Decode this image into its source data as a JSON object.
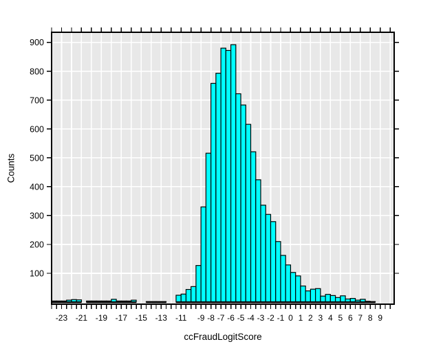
{
  "colors": {
    "page_bg": "#FFFFFF",
    "plot_bg": "#E8E8E8",
    "grid": "#FFFFFF",
    "bar_fill": "#00FFFF",
    "bar_stroke": "#000000",
    "axis": "#000000",
    "text": "#000000"
  },
  "chart_data": {
    "type": "bar",
    "subtype": "histogram",
    "title": "",
    "xlabel": "ccFraudLogitScore",
    "ylabel": "Counts",
    "legend": "none",
    "grid": "on",
    "bin_width": 0.5,
    "xlim": [
      -24.0,
      10.4
    ],
    "ylim": [
      -7,
      935
    ],
    "x_major_ticks": {
      "start": -24,
      "end": 10,
      "step": 1
    },
    "x_minor_ticks": {
      "start": -24,
      "end": 10,
      "step": 0.5
    },
    "y_ticks": [
      100,
      200,
      300,
      400,
      500,
      600,
      700,
      800,
      900
    ],
    "y_tick_labels": [
      "100",
      "200",
      "300",
      "400",
      "500",
      "600",
      "700",
      "800",
      "900"
    ],
    "x_tick_labels": [
      {
        "value": -23,
        "label": "-23"
      },
      {
        "value": -21,
        "label": "-21"
      },
      {
        "value": -19,
        "label": "-19"
      },
      {
        "value": -17,
        "label": "-17"
      },
      {
        "value": -15,
        "label": "-15"
      },
      {
        "value": -13,
        "label": "-13"
      },
      {
        "value": -11,
        "label": "-11"
      },
      {
        "value": -9,
        "label": "-9"
      },
      {
        "value": -8,
        "label": "-8"
      },
      {
        "value": -7,
        "label": "-7"
      },
      {
        "value": -6,
        "label": "-6"
      },
      {
        "value": -5,
        "label": "-5"
      },
      {
        "value": -4,
        "label": "-4"
      },
      {
        "value": -3,
        "label": "-3"
      },
      {
        "value": -2,
        "label": "-2"
      },
      {
        "value": -1,
        "label": "-1"
      },
      {
        "value": 0,
        "label": "0"
      },
      {
        "value": 1,
        "label": "1"
      },
      {
        "value": 2,
        "label": "2"
      },
      {
        "value": 3,
        "label": "3"
      },
      {
        "value": 4,
        "label": "4"
      },
      {
        "value": 5,
        "label": "5"
      },
      {
        "value": 6,
        "label": "6"
      },
      {
        "value": 7,
        "label": "7"
      },
      {
        "value": 8,
        "label": "8"
      },
      {
        "value": 9,
        "label": "9"
      }
    ],
    "bin_groups": [
      {
        "start": -24.0,
        "counts": [
          4,
          4,
          4
        ]
      },
      {
        "start": -22.5,
        "counts": [
          7,
          9,
          8
        ]
      },
      {
        "start": -20.5,
        "counts": [
          4,
          4,
          4,
          4,
          4,
          10,
          4,
          4,
          4,
          7
        ]
      },
      {
        "start": -14.5,
        "counts": [
          2,
          2,
          2,
          2
        ]
      },
      {
        "start": -11.5,
        "counts": [
          24,
          28,
          44,
          54,
          127,
          330,
          516,
          758,
          793,
          880,
          872,
          892,
          722,
          683,
          616,
          521,
          424,
          336,
          304,
          279,
          210,
          162,
          129,
          103,
          91,
          56,
          39,
          45,
          47,
          21,
          27,
          23,
          16,
          22,
          11,
          13,
          7,
          10,
          3,
          2
        ]
      }
    ]
  }
}
